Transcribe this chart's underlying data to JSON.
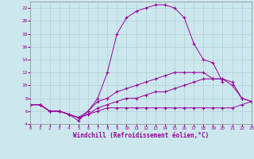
{
  "xlabel": "Windchill (Refroidissement éolien,°C)",
  "background_color": "#cce8ee",
  "line_color": "#990099",
  "grid_color": "#aacccc",
  "xlim": [
    0,
    23
  ],
  "ylim": [
    4,
    23
  ],
  "xticks": [
    0,
    1,
    2,
    3,
    4,
    5,
    6,
    7,
    8,
    9,
    10,
    11,
    12,
    13,
    14,
    15,
    16,
    17,
    18,
    19,
    20,
    21,
    22,
    23
  ],
  "yticks": [
    4,
    6,
    8,
    10,
    12,
    14,
    16,
    18,
    20,
    22
  ],
  "line1_x": [
    0,
    1,
    2,
    3,
    4,
    5,
    6,
    7,
    8,
    9,
    10,
    11,
    12,
    13,
    14,
    15,
    16,
    17,
    18,
    19,
    20
  ],
  "line1_y": [
    7,
    7,
    6,
    6,
    5.5,
    4.5,
    6,
    8,
    12,
    18,
    20.5,
    21.5,
    22,
    22.5,
    22.5,
    22,
    20.5,
    16.5,
    14,
    13.5,
    10.5
  ],
  "line2_x": [
    0,
    1,
    2,
    3,
    4,
    5,
    6,
    7,
    8,
    9,
    10,
    11,
    12,
    13,
    14,
    15,
    16,
    17,
    18,
    19,
    20,
    21,
    22,
    23
  ],
  "line2_y": [
    7,
    7,
    6,
    6,
    5.5,
    5,
    6,
    7.5,
    8,
    9,
    9.5,
    10,
    10.5,
    11,
    11.5,
    12,
    12,
    12,
    12,
    11,
    11,
    10,
    8,
    7.5
  ],
  "line3_x": [
    0,
    1,
    2,
    3,
    4,
    5,
    6,
    7,
    8,
    9,
    10,
    11,
    12,
    13,
    14,
    15,
    16,
    17,
    18,
    19,
    20,
    21,
    22,
    23
  ],
  "line3_y": [
    7,
    7,
    6,
    6,
    5.5,
    5,
    5.5,
    6.5,
    7,
    7.5,
    8,
    8,
    8.5,
    9,
    9,
    9.5,
    10,
    10.5,
    11,
    11,
    11,
    10.5,
    8,
    7.5
  ],
  "line4_x": [
    0,
    1,
    2,
    3,
    4,
    5,
    6,
    7,
    8,
    9,
    10,
    11,
    12,
    13,
    14,
    15,
    16,
    17,
    18,
    19,
    20,
    21,
    22,
    23
  ],
  "line4_y": [
    7,
    7,
    6,
    6,
    5.5,
    5,
    5.5,
    6,
    6.5,
    6.5,
    6.5,
    6.5,
    6.5,
    6.5,
    6.5,
    6.5,
    6.5,
    6.5,
    6.5,
    6.5,
    6.5,
    6.5,
    7,
    7.5
  ]
}
